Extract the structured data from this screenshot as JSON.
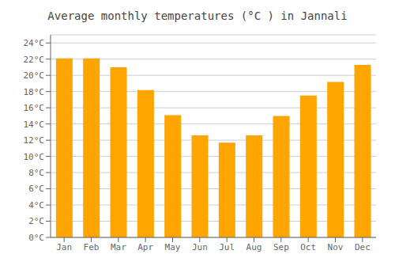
{
  "chart_data": {
    "type": "bar",
    "title": "Average monthly temperatures (°C ) in Jannali",
    "categories": [
      "Jan",
      "Feb",
      "Mar",
      "Apr",
      "May",
      "Jun",
      "Jul",
      "Aug",
      "Sep",
      "Oct",
      "Nov",
      "Dec"
    ],
    "values": [
      22.1,
      22.1,
      21.0,
      18.2,
      15.1,
      12.6,
      11.7,
      12.6,
      15.0,
      17.5,
      19.2,
      21.3
    ],
    "color": "#FFA500",
    "ylim": [
      0,
      25
    ],
    "yticks": [
      {
        "value": 0,
        "label": "0°C"
      },
      {
        "value": 2,
        "label": "2°C"
      },
      {
        "value": 4,
        "label": "4°C"
      },
      {
        "value": 6,
        "label": "6°C"
      },
      {
        "value": 8,
        "label": "8°C"
      },
      {
        "value": 10,
        "label": "10°C"
      },
      {
        "value": 12,
        "label": "12°C"
      },
      {
        "value": 14,
        "label": "14°C"
      },
      {
        "value": 16,
        "label": "16°C"
      },
      {
        "value": 18,
        "label": "18°C"
      },
      {
        "value": 20,
        "label": "20°C"
      },
      {
        "value": 22,
        "label": "22°C"
      },
      {
        "value": 24,
        "label": "24°C"
      }
    ],
    "grid": true
  }
}
